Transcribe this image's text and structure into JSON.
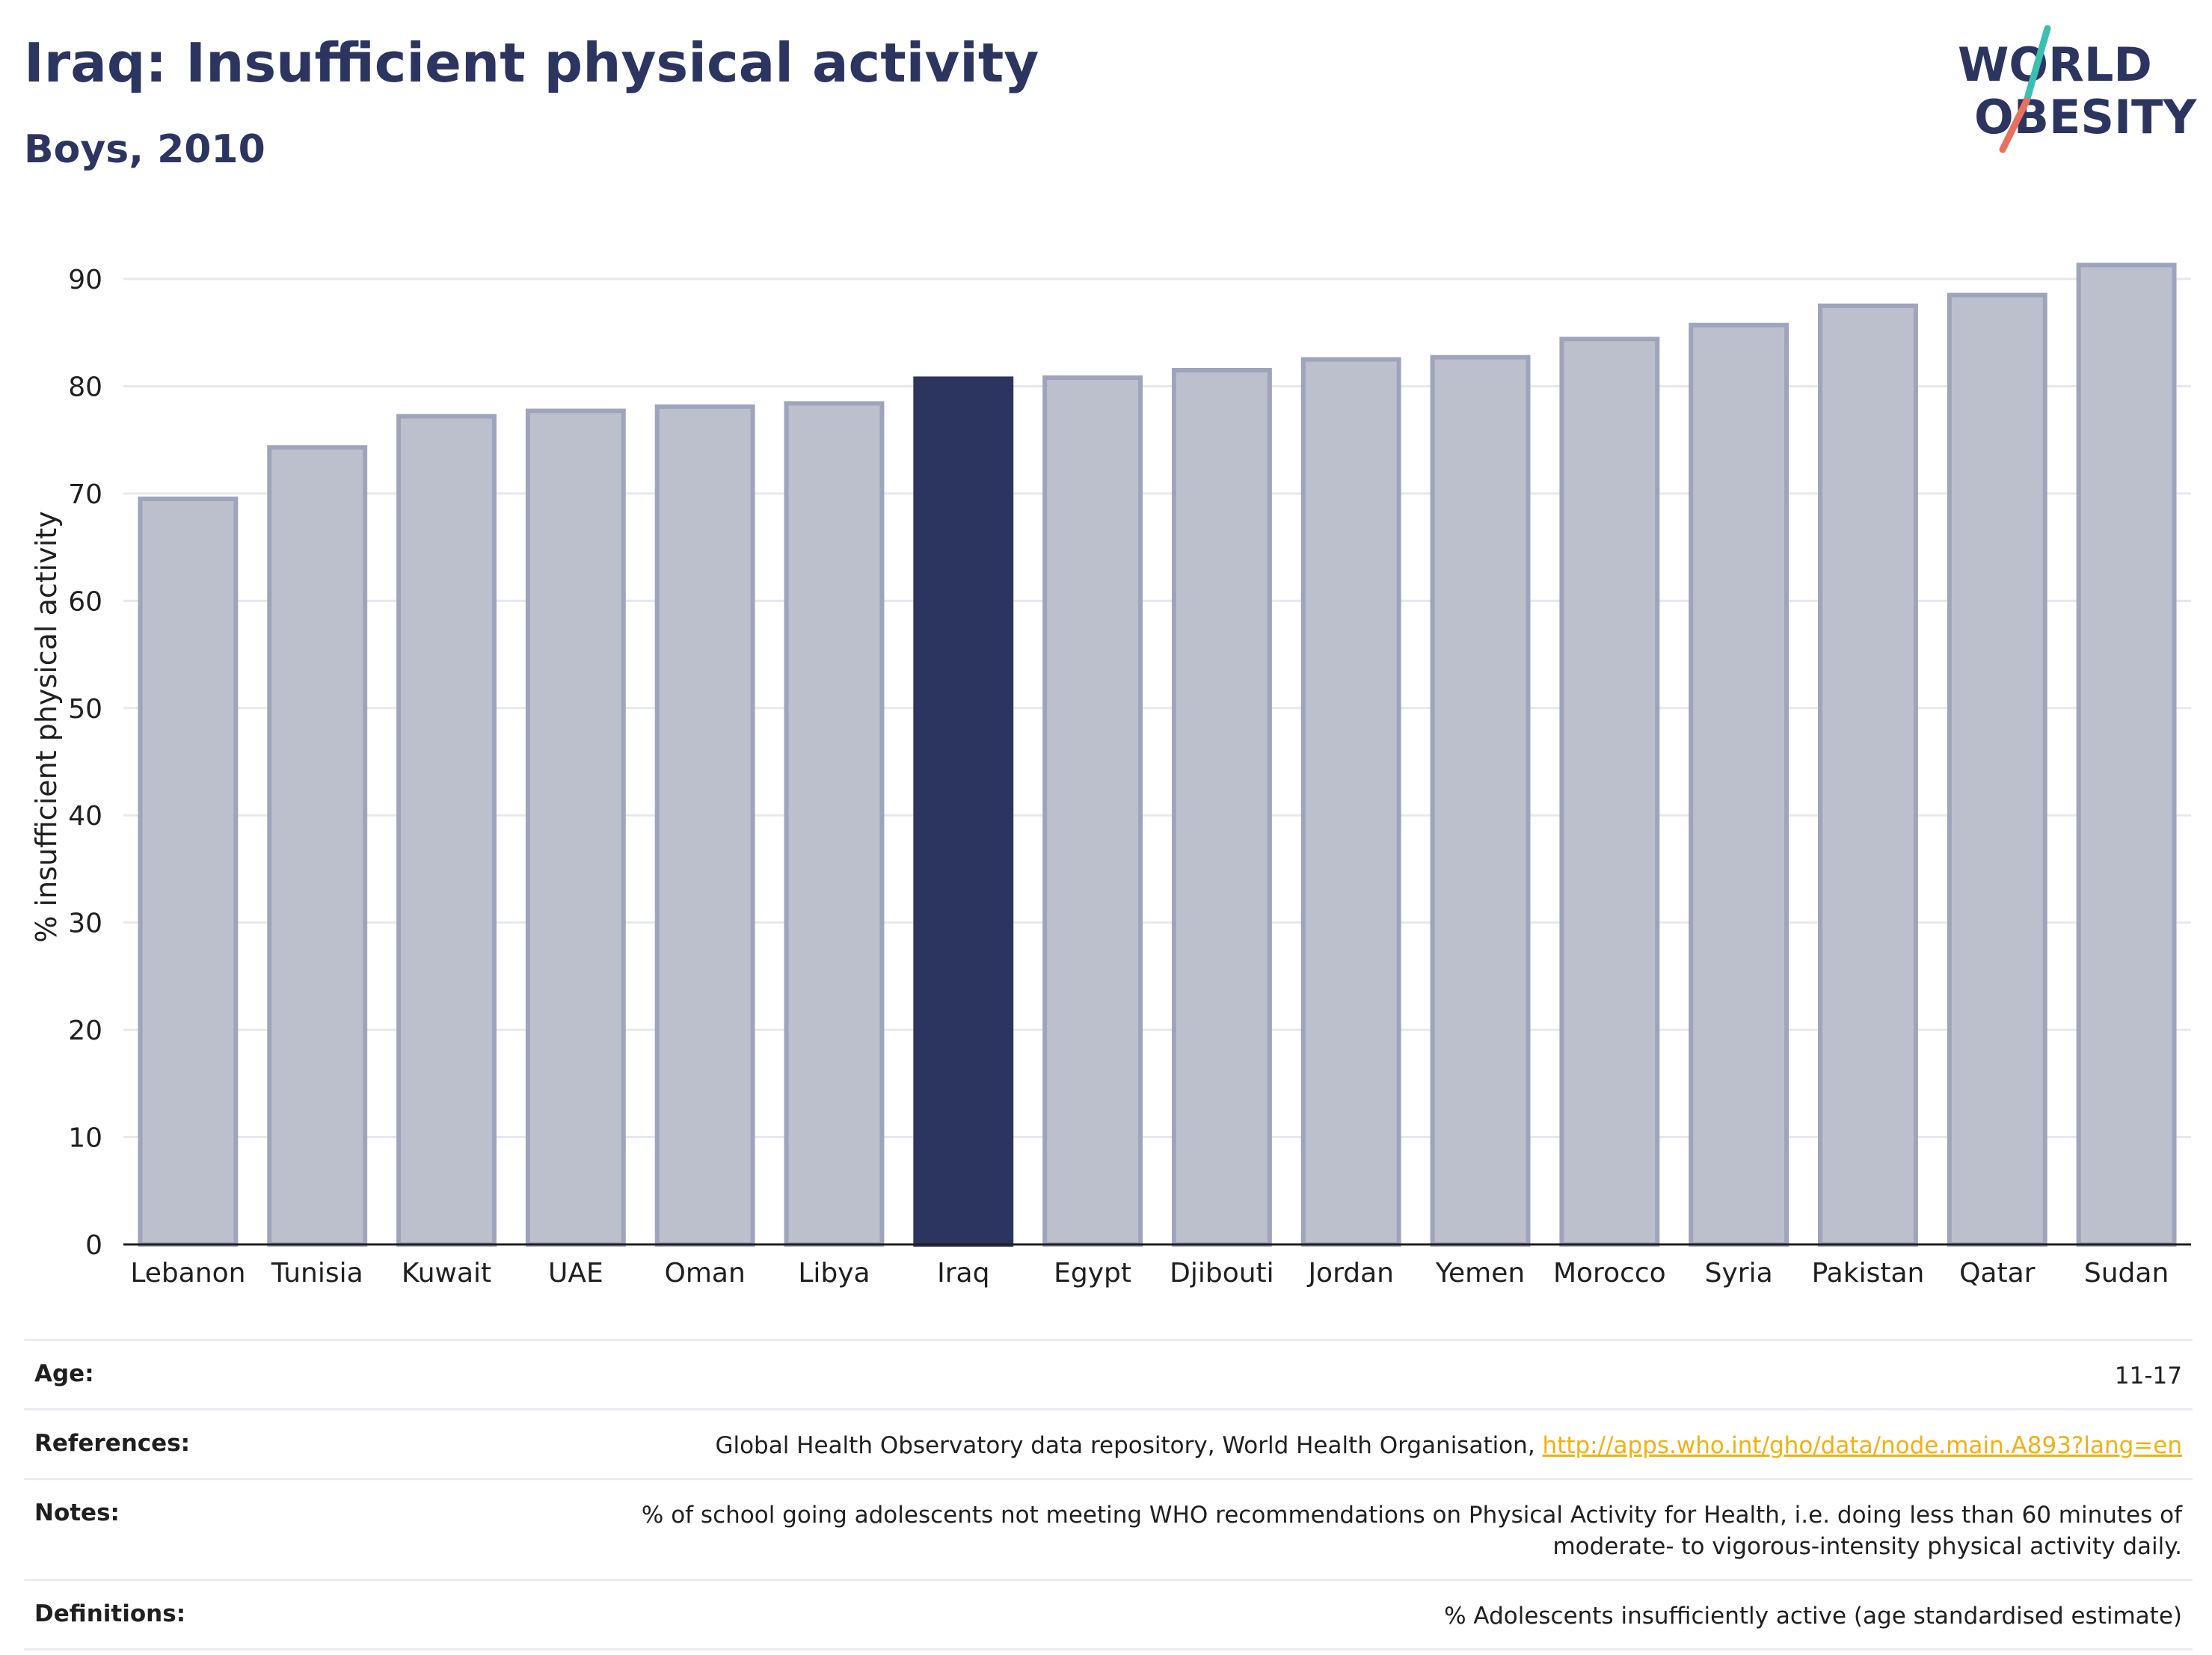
{
  "header": {
    "title": "Iraq: Insufficient physical activity",
    "subtitle": "Boys, 2010"
  },
  "logo": {
    "line1": "WORLD",
    "line2": "OBESITY",
    "colors": {
      "text": "#2b3560",
      "slash_teal": "#3bbfb0",
      "slash_coral": "#e8705f"
    }
  },
  "chart_data": {
    "type": "bar",
    "title": "Iraq: Insufficient physical activity",
    "subtitle": "Boys, 2010",
    "xlabel": "",
    "ylabel": "% insufficient physical activity",
    "ylim": [
      0,
      93
    ],
    "yticks": [
      0,
      10,
      20,
      30,
      40,
      50,
      60,
      70,
      80,
      90
    ],
    "grid": true,
    "highlight": "Iraq",
    "categories": [
      "Lebanon",
      "Tunisia",
      "Kuwait",
      "UAE",
      "Oman",
      "Libya",
      "Iraq",
      "Egypt",
      "Djibouti",
      "Jordan",
      "Yemen",
      "Morocco",
      "Syria",
      "Pakistan",
      "Qatar",
      "Sudan"
    ],
    "values": [
      69.5,
      74.3,
      77.2,
      77.7,
      78.1,
      78.4,
      80.7,
      80.8,
      81.5,
      82.5,
      82.7,
      84.4,
      85.7,
      87.5,
      88.5,
      91.3
    ],
    "colors": {
      "bar": "#bcc0cd",
      "bar_outline": "#9ea4bb",
      "highlight": "#2b3560",
      "grid": "#e6e8ef",
      "axis": "#1f1f1f"
    }
  },
  "meta": {
    "age_label": "Age:",
    "age_value": "11-17",
    "references_label": "References:",
    "references_text": "Global Health Observatory data repository, World Health Organisation, ",
    "references_link": "http://apps.who.int/gho/data/node.main.A893?lang=en",
    "notes_label": "Notes:",
    "notes_value": "% of school going adolescents not meeting WHO recommendations on Physical Activity for Health, i.e. doing less than 60 minutes of moderate- to vigorous-intensity physical activity daily.",
    "definitions_label": "Definitions:",
    "definitions_value": "% Adolescents insufficiently active (age standardised estimate)"
  }
}
